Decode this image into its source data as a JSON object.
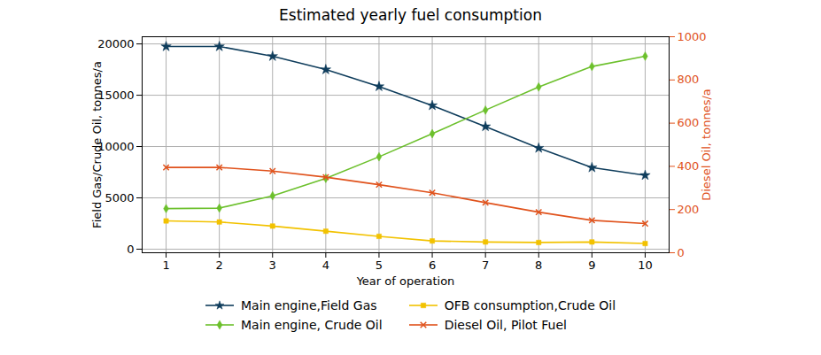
{
  "chart_data": {
    "type": "line",
    "title": "Estimated yearly fuel consumption",
    "x_label": "Year of operation",
    "y_label": "Field Gas/Crude Oil, tonnes/a",
    "y2_label": "Diesel Oil, tonnes/a",
    "x": [
      1,
      2,
      3,
      4,
      5,
      6,
      7,
      8,
      9,
      10
    ],
    "xlim": [
      0.55,
      10.45
    ],
    "xticks": [
      1,
      2,
      3,
      4,
      5,
      6,
      7,
      8,
      9,
      10
    ],
    "ylim": [
      -350,
      20700
    ],
    "yticks": [
      0,
      5000,
      10000,
      15000,
      20000
    ],
    "y2lim": [
      0,
      1000
    ],
    "y2ticks": [
      0,
      200,
      400,
      600,
      800,
      1000
    ],
    "grid": true,
    "legend": "bottom",
    "series": [
      {
        "name": "Main engine,Field Gas",
        "color": "#0f3d5c",
        "marker": "star",
        "axis": "y",
        "values": [
          19750,
          19750,
          18800,
          17500,
          15850,
          14000,
          11950,
          9850,
          7950,
          7200
        ]
      },
      {
        "name": "Main engine, Crude Oil",
        "color": "#6cc02c",
        "marker": "diamond",
        "axis": "y",
        "values": [
          3950,
          4000,
          5200,
          6900,
          9000,
          11250,
          13550,
          15800,
          17800,
          18800
        ]
      },
      {
        "name": "OFB consumption,Crude Oil",
        "color": "#f2c200",
        "marker": "square",
        "axis": "y",
        "values": [
          2750,
          2650,
          2250,
          1750,
          1250,
          800,
          700,
          650,
          700,
          550
        ]
      },
      {
        "name": "Diesel Oil, Pilot Fuel",
        "color": "#e0521c",
        "marker": "x",
        "axis": "y2",
        "values": [
          395,
          395,
          378,
          350,
          315,
          278,
          232,
          188,
          150,
          135
        ]
      }
    ]
  }
}
